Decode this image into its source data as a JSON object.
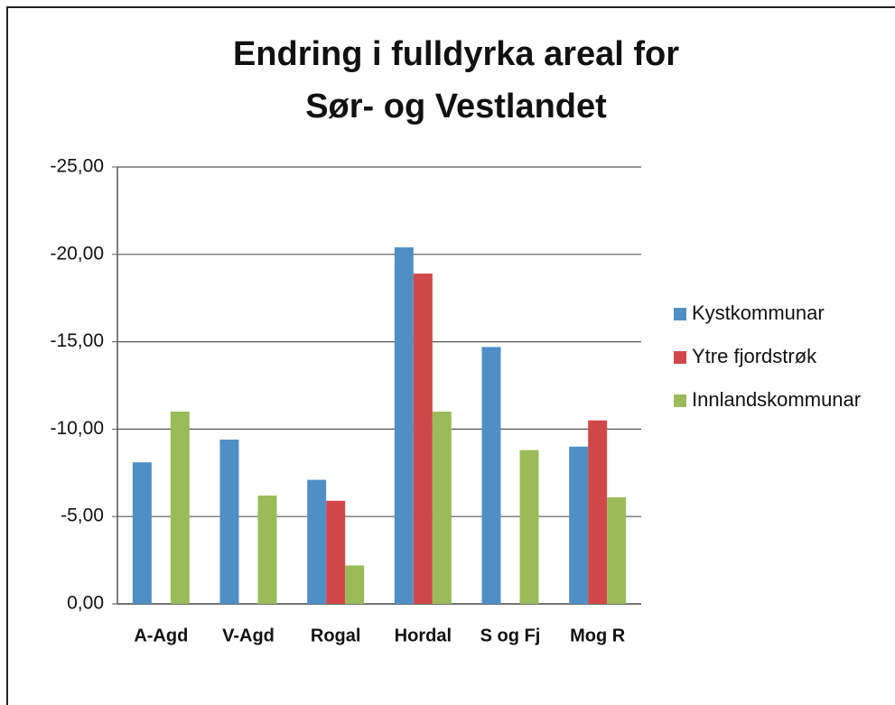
{
  "chart_data": {
    "type": "bar",
    "title": [
      "Endring i fulldyrka areal for",
      "Sør- og Vestlandet"
    ],
    "categories": [
      "A-Agd",
      "V-Agd",
      "Rogal",
      "Hordal",
      "S og Fj",
      "Mog R"
    ],
    "series": [
      {
        "name": "Kystkommunar",
        "color": "#4f8fc6",
        "values": [
          -8.1,
          -9.4,
          -7.1,
          -20.4,
          -14.7,
          -9.0
        ]
      },
      {
        "name": "Ytre fjordstrøk",
        "color": "#d0484a",
        "values": [
          null,
          null,
          -5.9,
          -18.9,
          null,
          -10.5
        ]
      },
      {
        "name": "Innlandskommunar",
        "color": "#9bbb59",
        "values": [
          -11.0,
          -6.2,
          -2.2,
          -11.0,
          -8.8,
          -6.1
        ]
      }
    ],
    "ylim": [
      0,
      -25
    ],
    "yticks": [
      {
        "value": 0,
        "label": "0,00"
      },
      {
        "value": -5,
        "label": "-5,00"
      },
      {
        "value": -10,
        "label": "-10,00"
      },
      {
        "value": -15,
        "label": "-15,00"
      },
      {
        "value": -20,
        "label": "-20,00"
      },
      {
        "value": -25,
        "label": "-25,00"
      }
    ],
    "grid": true,
    "legend": "right"
  }
}
